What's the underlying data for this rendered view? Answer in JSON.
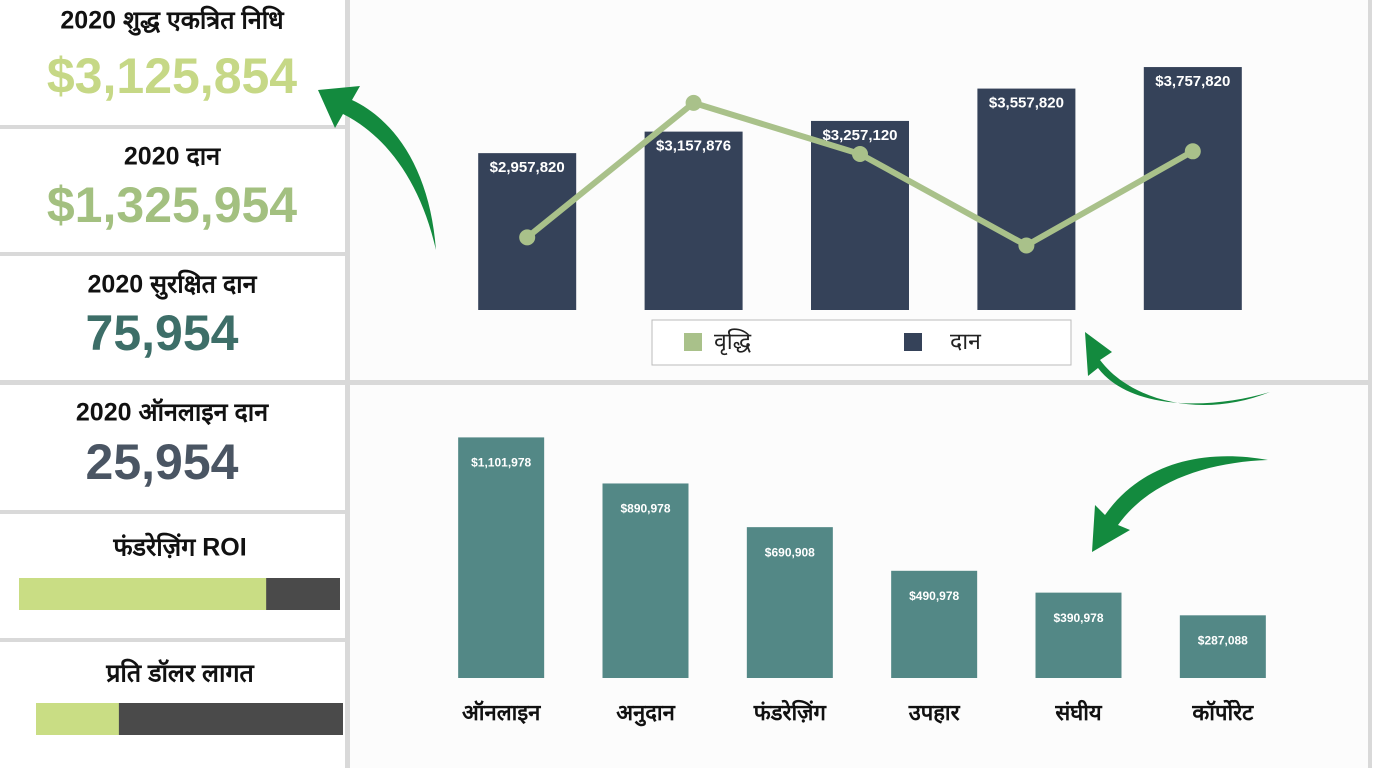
{
  "kpis": [
    {
      "title": "2020 शुद्ध एकत्रित निधि",
      "value": "$3,125,854",
      "color": "#c6d886"
    },
    {
      "title": "2020 दान",
      "value": "$1,325,954",
      "color": "#a3c080"
    },
    {
      "title": "2020 सुरक्षित दान",
      "value": "75,954",
      "color": "#3d6e68"
    },
    {
      "title": "2020 ऑनलाइन दान",
      "value": "25,954",
      "color": "#4a5563"
    }
  ],
  "gauges": [
    {
      "title": "फंडरेज़िंग ROI",
      "value": 77,
      "xlim": [
        0,
        100
      ]
    },
    {
      "title": "प्रति डॉलर लागत",
      "value": 27,
      "xlim": [
        0,
        100
      ]
    }
  ],
  "chart_data": [
    {
      "type": "combo",
      "categories": [
        null,
        null,
        null,
        null,
        null
      ],
      "series": [
        {
          "name": "दान",
          "type": "bar",
          "color": "#354259",
          "values": [
            2957820,
            3157876,
            3257120,
            3557820,
            3757820
          ],
          "value_labels": [
            "$2,957,820",
            "$3,157,876",
            "$3,257,120",
            "$3,557,820",
            "$3,757,820"
          ]
        },
        {
          "name": "वृद्धि",
          "type": "line",
          "axis": "y2",
          "color": "#a9c18a",
          "values": [
            27,
            77,
            58,
            24,
            59
          ]
        }
      ],
      "ylim": [
        1500000,
        4000000
      ],
      "y2lim": [
        0,
        100
      ]
    },
    {
      "type": "bar",
      "categories": [
        "ऑनलाइन",
        "अनुदान",
        "फंडरेज़िंग",
        "उपहार",
        "संघीय",
        "कॉर्पोरेट"
      ],
      "values": [
        1101978,
        890978,
        690908,
        490978,
        390978,
        287088
      ],
      "value_labels": [
        "$1,101,978",
        "$890,978",
        "$690,908",
        "$490,978",
        "$390,978",
        "$287,088"
      ],
      "color": "#538886",
      "ylim": [
        0,
        1200000
      ]
    }
  ]
}
